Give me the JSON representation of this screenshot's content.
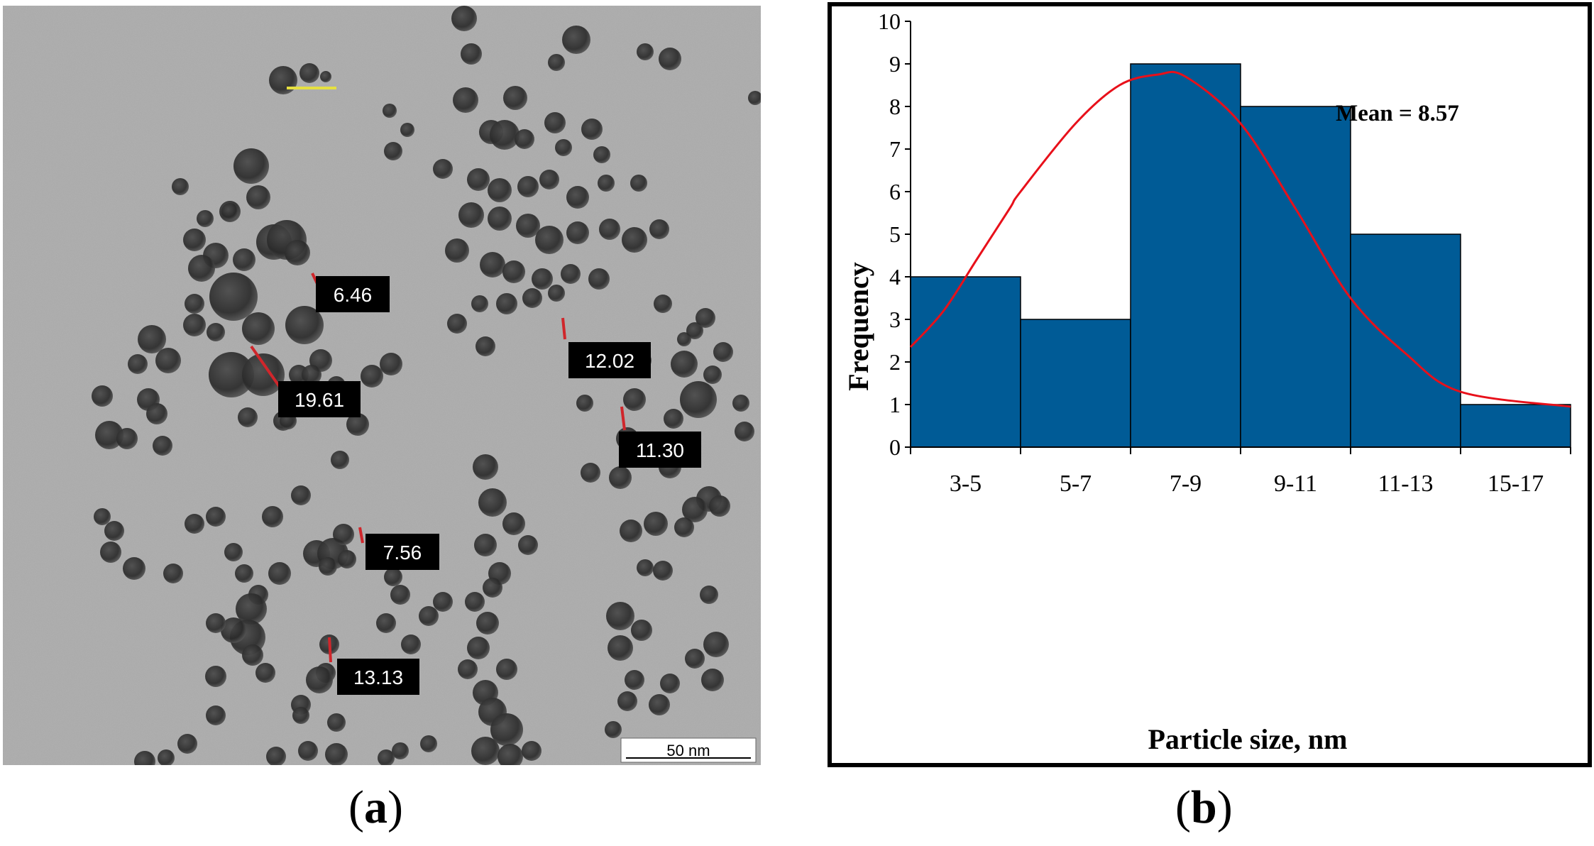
{
  "panel_a": {
    "caption_open": "(",
    "caption_letter": "a",
    "caption_close": ")",
    "scale_bar_label": "50 nm",
    "measurements": [
      "6.46",
      "19.61",
      "12.02",
      "11.30",
      "7.56",
      "13.13"
    ]
  },
  "panel_b": {
    "caption_open": "(",
    "caption_letter": "b",
    "caption_close": ")"
  },
  "chart_data": {
    "type": "bar",
    "title": "",
    "xlabel": "Particle size, nm",
    "ylabel": "Frequency",
    "annotation": "Mean = 8.57",
    "categories": [
      "3-5",
      "5-7",
      "7-9",
      "9-11",
      "11-13",
      "15-17"
    ],
    "values": [
      4,
      3,
      9,
      8,
      5,
      1
    ],
    "ylim": [
      0,
      10
    ],
    "yticks": [
      0,
      1,
      2,
      3,
      4,
      5,
      6,
      7,
      8,
      9,
      10
    ],
    "grid": false,
    "bar_color": "#005b96",
    "fit_curve": {
      "name": "",
      "color": "#e8101a",
      "points": [
        [
          0,
          2.35
        ],
        [
          0.3,
          3.2
        ],
        [
          0.6,
          4.4
        ],
        [
          0.9,
          5.6
        ],
        [
          1.0,
          6.0
        ],
        [
          1.5,
          7.6
        ],
        [
          1.9,
          8.5
        ],
        [
          2.25,
          8.75
        ],
        [
          2.5,
          8.7
        ],
        [
          3.0,
          7.6
        ],
        [
          3.5,
          5.6
        ],
        [
          4.0,
          3.5
        ],
        [
          4.5,
          2.2
        ],
        [
          5.0,
          1.3
        ],
        [
          6.0,
          0.95
        ]
      ]
    }
  }
}
